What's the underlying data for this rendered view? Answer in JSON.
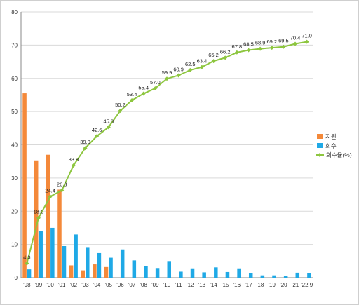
{
  "chart_data": {
    "type": "bar",
    "categories": [
      "'98",
      "'99",
      "'00",
      "'01",
      "'02",
      "'03",
      "'04",
      "'05",
      "'06",
      "'07",
      "'08",
      "'09",
      "'10",
      "'11",
      "'12",
      "'13",
      "'14",
      "'15",
      "'16",
      "'17",
      "'18",
      "'19",
      "'20",
      "'21",
      "'22.9"
    ],
    "ylim": [
      0,
      80
    ],
    "yticks": [
      0,
      10,
      20,
      30,
      40,
      50,
      60,
      70,
      80
    ],
    "grid": true,
    "legend_position": "right",
    "series": [
      {
        "name": "지원",
        "kind": "bar",
        "color": "#F4893A",
        "values": [
          55.5,
          35.3,
          37.0,
          26.5,
          3.7,
          2.2,
          4.0,
          3.2,
          0,
          0,
          0,
          0,
          0,
          0,
          0,
          0,
          0,
          0,
          0,
          0,
          0,
          0,
          0,
          0,
          0
        ]
      },
      {
        "name": "회수",
        "kind": "bar",
        "color": "#1FA9E6",
        "values": [
          2.5,
          14.0,
          15.0,
          9.5,
          13.0,
          9.2,
          7.4,
          6.0,
          8.5,
          5.2,
          3.5,
          2.9,
          5.0,
          1.8,
          2.8,
          1.6,
          3.1,
          1.7,
          2.8,
          1.4,
          0.7,
          0.7,
          0.5,
          1.5,
          1.3
        ]
      },
      {
        "name": "회수율(%)",
        "kind": "line",
        "color": "#8DC63F",
        "values": [
          4.3,
          18.0,
          24.4,
          26.3,
          33.8,
          39.0,
          42.6,
          45.3,
          50.2,
          53.4,
          55.4,
          57.0,
          59.9,
          60.9,
          62.5,
          63.4,
          65.2,
          66.2,
          67.8,
          68.5,
          68.9,
          69.2,
          69.5,
          70.4,
          71.0
        ],
        "labels": [
          "4.3",
          "18.0",
          "24.4",
          "26.3",
          "33.8",
          "39.0",
          "42.6",
          "45.3",
          "50.2",
          "53.4",
          "55.4",
          "57.0",
          "59.9",
          "60.9",
          "62.5",
          "63.4",
          "65.2",
          "66.2",
          "67.8",
          "68.5",
          "68.9",
          "69.2",
          "69.5",
          "70.4",
          "71.0"
        ]
      }
    ]
  }
}
